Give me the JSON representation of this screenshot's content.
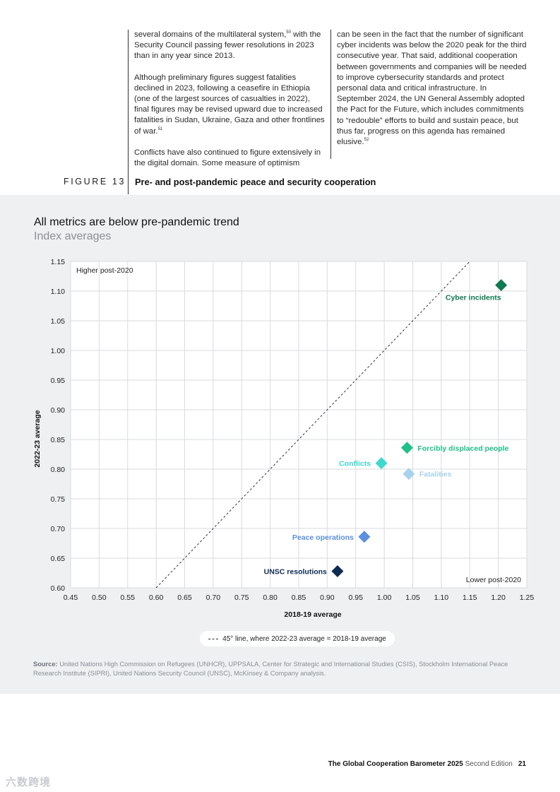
{
  "columns": {
    "left": [
      {
        "pre": "several domains of the multilateral system,",
        "sup": "50",
        "post": " with the Security Council passing fewer resolutions in 2023 than in any year since 2013."
      },
      {
        "pre": "Although preliminary figures suggest fatalities declined in 2023, following a ceasefire in Ethiopia (one of the largest sources of casualties in 2022), final figures may be revised upward due to increased fatalities in Sudan, Ukraine, Gaza and other frontlines of war.",
        "sup": "51",
        "post": ""
      },
      {
        "pre": "Conflicts have also continued to figure extensively in the digital domain. Some measure of optimism",
        "sup": "",
        "post": ""
      }
    ],
    "right": [
      {
        "pre": "can be seen in the fact that the number of significant cyber incidents was below the 2020 peak for the third consecutive year. That said, additional cooperation between governments and companies will be needed to improve cybersecurity standards and protect personal data and critical infrastructure. In September 2024, the UN General Assembly adopted the Pact for the Future, which includes commitments to “redouble” efforts to build and sustain peace, but thus far, progress on this agenda has remained elusive.",
        "sup": "52",
        "post": ""
      }
    ]
  },
  "figure": {
    "label": "FIGURE 13",
    "title": "Pre- and post-pandemic peace and security cooperation"
  },
  "chart": {
    "title": "All metrics are below pre-pandemic trend",
    "subtitle": "Index averages"
  },
  "chart_data": {
    "type": "scatter",
    "xlabel": "2018-19 average",
    "ylabel": "2022-23 average",
    "xlim": [
      0.45,
      1.25
    ],
    "ylim": [
      0.6,
      1.15
    ],
    "x_ticks": [
      "0.45",
      "0.50",
      "0.55",
      "0.60",
      "0.65",
      "0.70",
      "0.75",
      "0.80",
      "0.85",
      "0.90",
      "0.95",
      "1.00",
      "1.05",
      "1.10",
      "1.15",
      "1.20",
      "1.25"
    ],
    "y_ticks": [
      "0.60",
      "0.65",
      "0.70",
      "0.75",
      "0.80",
      "0.85",
      "0.90",
      "0.95",
      "1.00",
      "1.05",
      "1.10",
      "1.15"
    ],
    "quadrant_labels": {
      "top_left": "Higher post-2020",
      "bottom_right": "Lower post-2020"
    },
    "reference_line": {
      "type": "diagonal-45",
      "label": "45° line, where 2022-23 average = 2018-19 average"
    },
    "points": [
      {
        "name": "Cyber incidents",
        "x": 1.205,
        "y": 1.11,
        "color": "#0f7a4e",
        "label_side": "below"
      },
      {
        "name": "Forcibly displaced people",
        "x": 1.04,
        "y": 0.836,
        "color": "#1fbf8a",
        "label_side": "right"
      },
      {
        "name": "Conflicts",
        "x": 0.995,
        "y": 0.81,
        "color": "#3fd8d0",
        "label_side": "left"
      },
      {
        "name": "Fatalities",
        "x": 1.043,
        "y": 0.792,
        "color": "#a9d2ee",
        "label_side": "right"
      },
      {
        "name": "Peace operations",
        "x": 0.965,
        "y": 0.686,
        "color": "#5b8fe0",
        "label_side": "left"
      },
      {
        "name": "UNSC resolutions",
        "x": 0.918,
        "y": 0.628,
        "color": "#0e2a52",
        "label_side": "left"
      }
    ]
  },
  "source": {
    "label": "Source:",
    "text": " United Nations High Commission on Refugees (UNHCR), UPPSALA, Center for Strategic and International Studies (CSIS), Stockholm International Peace Research Institute (SIPRI), United Nations Security Council (UNSC), McKinsey & Company analysis."
  },
  "footer": {
    "title": "The Global Cooperation Barometer 2025",
    "edition": " Second Edition",
    "page": "21"
  },
  "watermark": "六数跨境"
}
